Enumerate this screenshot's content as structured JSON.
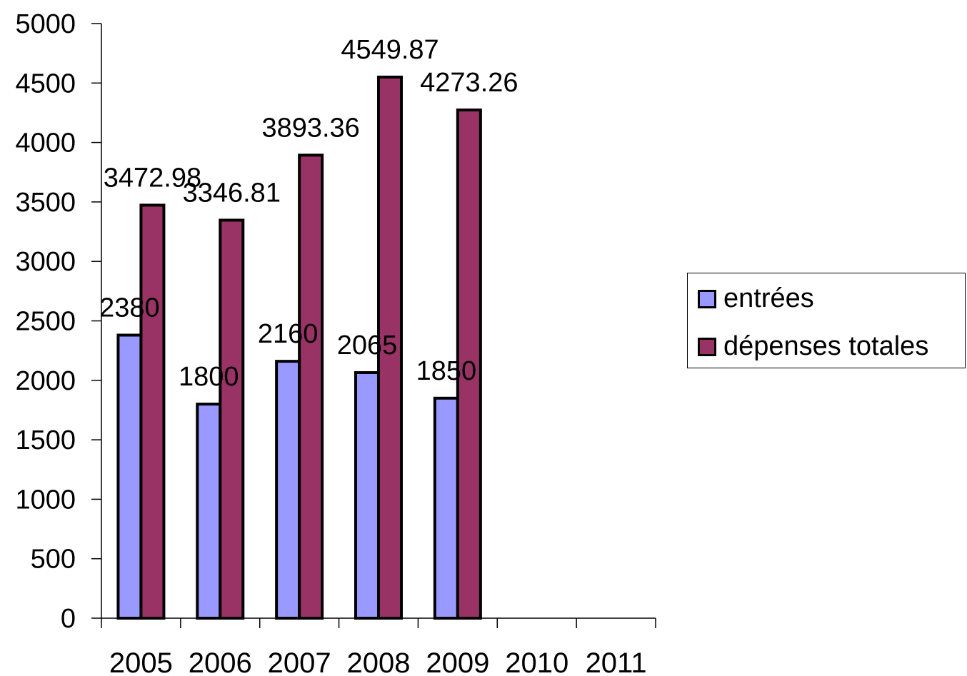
{
  "chart_data": {
    "type": "bar",
    "title": "",
    "xlabel": "",
    "ylabel": "",
    "categories": [
      "2005",
      "2006",
      "2007",
      "2008",
      "2009",
      "2010",
      "2011"
    ],
    "series": [
      {
        "name": "entrées",
        "color": "#9999FF",
        "values": [
          2380,
          1800,
          2160,
          2065,
          1850,
          null,
          null
        ],
        "labels": [
          "2380",
          "1800",
          "2160",
          "2065",
          "1850",
          "",
          ""
        ]
      },
      {
        "name": "dépenses totales",
        "color": "#993366",
        "values": [
          3472.98,
          3346.81,
          3893.36,
          4549.87,
          4273.26,
          null,
          null
        ],
        "labels": [
          "3472.98",
          "3346.81",
          "3893.36",
          "4549.87",
          "4273.26",
          "",
          ""
        ]
      }
    ],
    "ylim": [
      0,
      5000
    ],
    "yticks": [
      "0",
      "500",
      "1000",
      "1500",
      "2000",
      "2500",
      "3000",
      "3500",
      "4000",
      "4500",
      "5000"
    ],
    "grid": false,
    "legend_position": "right"
  }
}
